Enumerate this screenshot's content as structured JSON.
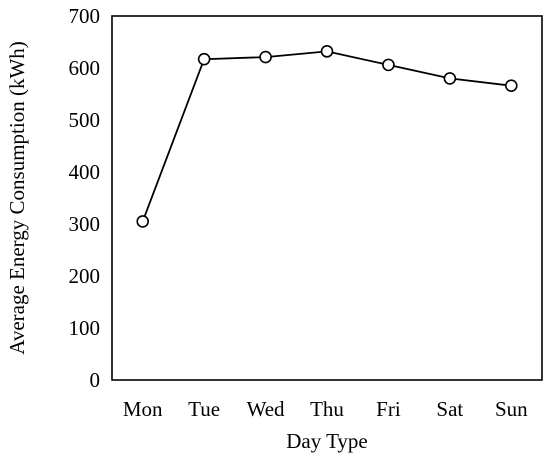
{
  "chart_data": {
    "type": "line",
    "title": "",
    "xlabel": "Day Type",
    "ylabel": "Average Energy Consumption (kWh)",
    "categories": [
      "Mon",
      "Tue",
      "Wed",
      "Thu",
      "Fri",
      "Sat",
      "Sun"
    ],
    "series": [
      {
        "values": [
          305,
          617,
          621,
          632,
          606,
          580,
          566
        ]
      }
    ],
    "ylim": [
      0,
      700
    ],
    "yticks": [
      "0",
      "100",
      "200",
      "300",
      "400",
      "500",
      "600",
      "700"
    ],
    "grid": false,
    "legend": "none",
    "marker": "open-circle",
    "line_color": "#000000"
  }
}
